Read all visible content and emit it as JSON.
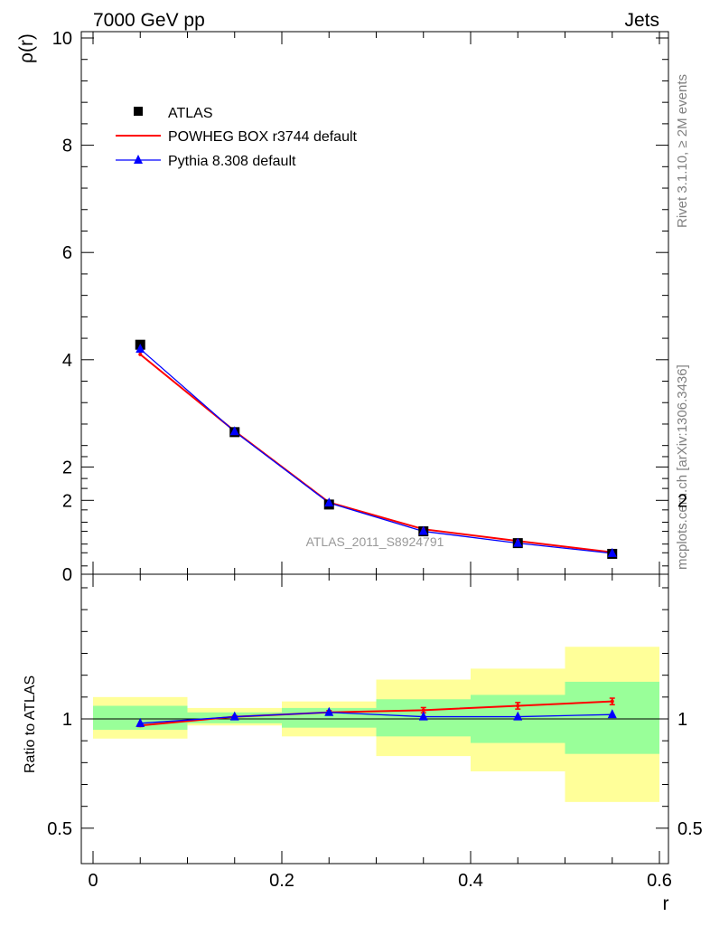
{
  "header": {
    "energy_label": "7000 GeV pp",
    "process_label": "Jets"
  },
  "side_labels": {
    "rivet": "Rivet 3.1.10, ≥ 2M events",
    "source": "mcplots.cern.ch [arXiv:1306.3436]"
  },
  "analysis_label": "ATLAS_2011_S8924791",
  "colors": {
    "data": "#000000",
    "powheg": "#ff0000",
    "pythia": "#0000ff",
    "band_inner": "#99ff99",
    "band_outer": "#ffff99"
  },
  "chart_data": [
    {
      "type": "line",
      "panel": "main",
      "ylabel": "ρ(r)",
      "xlim": [
        0,
        0.6
      ],
      "ylim": [
        0,
        10
      ],
      "x_ticks": [
        0,
        0.2,
        0.4,
        0.6
      ],
      "y_ticks": [
        0,
        2,
        4,
        6,
        8,
        10
      ],
      "y_tick_labels": [
        "0",
        "2",
        "4",
        "6",
        "8",
        "10"
      ],
      "x": [
        0.05,
        0.15,
        0.25,
        0.35,
        0.45,
        0.55
      ],
      "bin_edges": [
        0.0,
        0.1,
        0.2,
        0.3,
        0.4,
        0.5,
        0.6
      ],
      "series": [
        {
          "name": "ATLAS",
          "values": [
            4.28,
            2.65,
            1.3,
            0.8,
            0.58,
            0.38
          ],
          "marker": "square"
        },
        {
          "name": "POWHEG BOX r3744 default",
          "values": [
            4.1,
            2.67,
            1.34,
            0.84,
            0.62,
            0.41
          ],
          "marker": "none"
        },
        {
          "name": "Pythia 8.308 default",
          "values": [
            4.2,
            2.66,
            1.33,
            0.8,
            0.58,
            0.39
          ],
          "marker": "triangle"
        }
      ],
      "legend_position": "top-left"
    },
    {
      "type": "line",
      "panel": "ratio",
      "ylabel": "Ratio to ATLAS",
      "xlabel": "r",
      "xlim": [
        0,
        0.6
      ],
      "ylim": [
        0.4,
        2.3
      ],
      "x_tick_labels": [
        "0",
        "0.2",
        "0.4",
        "0.6"
      ],
      "y_ticks": [
        0.5,
        1,
        2
      ],
      "y_tick_labels": [
        "0.5",
        "1",
        "2"
      ],
      "x": [
        0.05,
        0.15,
        0.25,
        0.35,
        0.45,
        0.55
      ],
      "bands": {
        "inner": [
          [
            0.95,
            1.06
          ],
          [
            0.98,
            1.03
          ],
          [
            0.96,
            1.05
          ],
          [
            0.92,
            1.09
          ],
          [
            0.89,
            1.11
          ],
          [
            0.84,
            1.17
          ]
        ],
        "outer": [
          [
            0.91,
            1.1
          ],
          [
            0.97,
            1.05
          ],
          [
            0.92,
            1.08
          ],
          [
            0.83,
            1.18
          ],
          [
            0.76,
            1.23
          ],
          [
            0.62,
            1.33
          ]
        ]
      },
      "series": [
        {
          "name": "POWHEG BOX r3744 default",
          "values": [
            0.97,
            1.01,
            1.03,
            1.04,
            1.06,
            1.08
          ],
          "errors": [
            0.005,
            0.005,
            0.008,
            0.012,
            0.015,
            0.015
          ]
        },
        {
          "name": "Pythia 8.308 default",
          "values": [
            0.98,
            1.01,
            1.03,
            1.01,
            1.01,
            1.02
          ]
        }
      ]
    }
  ]
}
